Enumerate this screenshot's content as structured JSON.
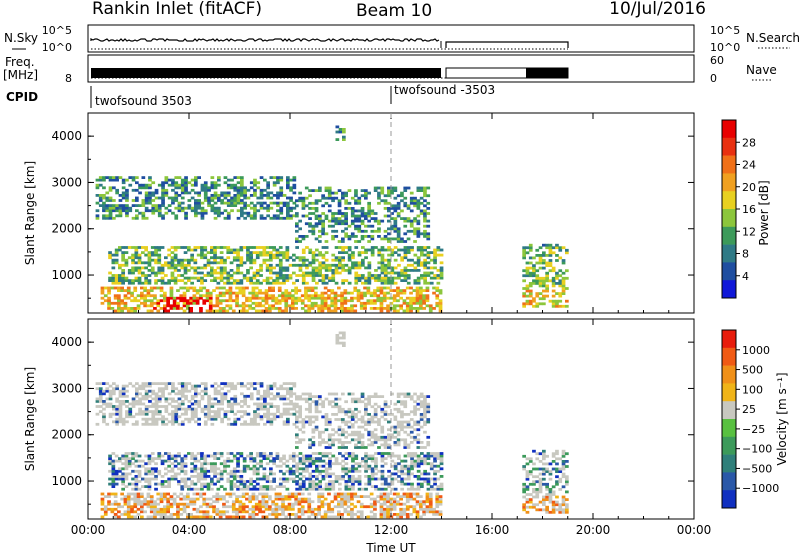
{
  "header": {
    "title": "Rankin Inlet (fitACF)",
    "beam": "Beam 10",
    "date": "10/Jul/2016"
  },
  "strips": {
    "nsky_label": "N.Sky",
    "nsearch_label": "N.Search",
    "noise_ticks": [
      "10^5",
      "10^0"
    ],
    "freq_label": "Freq.",
    "freq_unit": "[MHz]",
    "freq_ticks": [
      "8"
    ],
    "nave_ticks": [
      "60",
      "0"
    ],
    "nave_label": "Nave",
    "cpid_label": "CPID",
    "cpid_1": "twofsound 3503",
    "cpid_2": "twofsound -3503"
  },
  "chart_data": [
    {
      "type": "heatmap",
      "panel": "power",
      "ylabel": "Slant Range [km]",
      "yticks": [
        1000,
        2000,
        3000,
        4000
      ],
      "xticks": [
        "00:00",
        "04:00",
        "08:00",
        "12:00",
        "16:00",
        "20:00",
        "00:00"
      ],
      "xrange_hours": [
        0,
        24
      ],
      "yrange_km": [
        180,
        4500
      ],
      "colorbar": {
        "label": "Power [dB]",
        "ticks": [
          "4",
          "8",
          "12",
          "16",
          "20",
          "24",
          "28"
        ],
        "colors": [
          "#1018d8",
          "#1f4ea0",
          "#2f7a86",
          "#3c9a5a",
          "#8cc63c",
          "#e8d020",
          "#f0a020",
          "#f07018",
          "#e83010",
          "#e80000"
        ]
      }
    },
    {
      "type": "heatmap",
      "panel": "velocity",
      "ylabel": "Slant Range [km]",
      "yticks": [
        1000,
        2000,
        3000,
        4000
      ],
      "xticks": [
        "00:00",
        "04:00",
        "08:00",
        "12:00",
        "16:00",
        "20:00",
        "00:00"
      ],
      "xlabel": "Time UT",
      "xrange_hours": [
        0,
        24
      ],
      "yrange_km": [
        180,
        4500
      ],
      "colorbar": {
        "label": "Velocity [m s⁻¹]",
        "ticks": [
          "1000",
          "500",
          "100",
          "25",
          "−25",
          "−100",
          "−500",
          "−1000"
        ],
        "colors": [
          "#1030c0",
          "#2a58a8",
          "#2f7f7a",
          "#3c9a5a",
          "#58c040",
          "#c8c8c0",
          "#f0b418",
          "#f09018",
          "#f05a14",
          "#e81c0c"
        ]
      }
    }
  ],
  "reference_line_hour": 12.0
}
